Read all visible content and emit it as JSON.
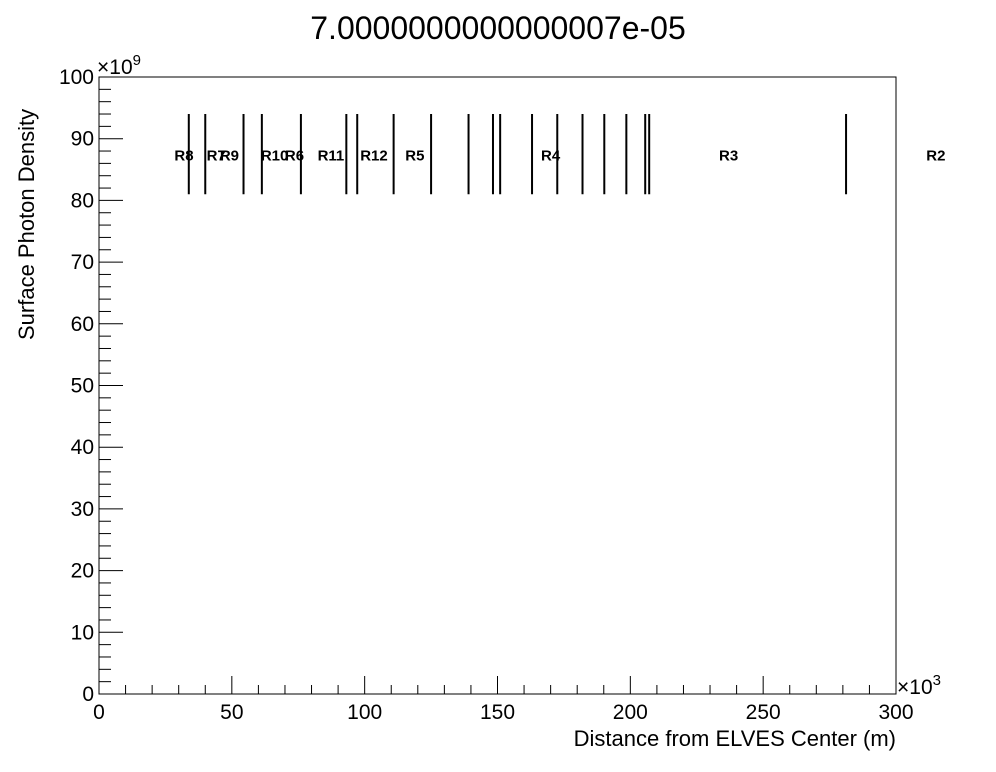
{
  "chart_data": {
    "type": "scatter",
    "title": "7.0000000000000007e-05",
    "xlabel": "Distance from ELVES Center (m)",
    "ylabel": "Surface Photon Density",
    "x_multiplier": "×10",
    "x_multiplier_exp": "3",
    "y_multiplier": "×10",
    "y_multiplier_exp": "9",
    "xlim": [
      0,
      300
    ],
    "ylim": [
      0,
      100
    ],
    "x_ticks": [
      0,
      50,
      100,
      150,
      200,
      250,
      300
    ],
    "x_tick_labels": [
      "0",
      "50",
      "100",
      "150",
      "200",
      "250",
      "300"
    ],
    "y_ticks": [
      0,
      10,
      20,
      30,
      40,
      50,
      60,
      70,
      80,
      90,
      100
    ],
    "y_tick_labels": [
      "0",
      "10",
      "20",
      "30",
      "40",
      "50",
      "60",
      "70",
      "80",
      "90",
      "100"
    ],
    "grid": false,
    "legend": "none",
    "marker_range": [
      81,
      94
    ],
    "boundary_markers_x": [
      33.8,
      40,
      54.4,
      61.3,
      76,
      93.1,
      97.2,
      110.9,
      125,
      139.1,
      148.3,
      151,
      163,
      172.5,
      182,
      190.2,
      198.5,
      205.6,
      207.1,
      281.2
    ],
    "region_labels": [
      {
        "text": "R8",
        "x": 32,
        "y": 87.3
      },
      {
        "text": "R7",
        "x": 44.1,
        "y": 87.3
      },
      {
        "text": "R9",
        "x": 49.1,
        "y": 87.3
      },
      {
        "text": "R10",
        "x": 66.1,
        "y": 87.3
      },
      {
        "text": "R6",
        "x": 73.6,
        "y": 87.3
      },
      {
        "text": "R11",
        "x": 87.3,
        "y": 87.3
      },
      {
        "text": "R12",
        "x": 103.5,
        "y": 87.3
      },
      {
        "text": "R5",
        "x": 118.9,
        "y": 87.3
      },
      {
        "text": "R4",
        "x": 170,
        "y": 87.3
      },
      {
        "text": "R3",
        "x": 237,
        "y": 87.3
      },
      {
        "text": "R2",
        "x": 315,
        "y": 87.3
      }
    ]
  }
}
